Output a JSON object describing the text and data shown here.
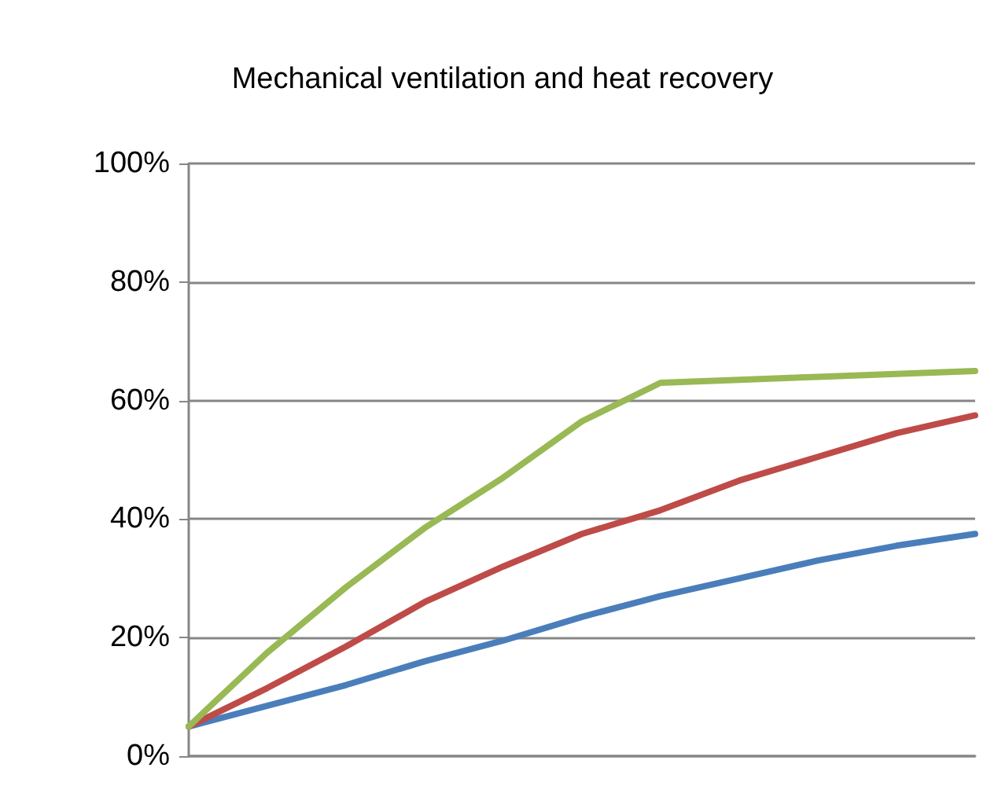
{
  "chart_data": {
    "type": "line",
    "title": "Mechanical ventilation and heat recovery",
    "categories": [
      null,
      null,
      null,
      null,
      null,
      null,
      null,
      null,
      null,
      null,
      null
    ],
    "series": [
      {
        "color": "#4a7ebb",
        "values": [
          5,
          8.5,
          12,
          16,
          19.5,
          23.5,
          27,
          30,
          33,
          35.5,
          37.5
        ]
      },
      {
        "color": "#be4b48",
        "values": [
          5,
          11.5,
          18.5,
          26,
          32,
          37.5,
          41.5,
          46.5,
          50.5,
          54.5,
          57.5
        ]
      },
      {
        "color": "#98b954",
        "values": [
          5,
          17.5,
          28.5,
          38.5,
          47,
          56.5,
          63,
          63.5,
          64,
          64.5,
          65
        ]
      }
    ],
    "ylim": [
      0,
      100
    ],
    "yticks": [
      {
        "value": 0,
        "label": "0%"
      },
      {
        "value": 20,
        "label": "20%"
      },
      {
        "value": 40,
        "label": "40%"
      },
      {
        "value": 60,
        "label": "60%"
      },
      {
        "value": 80,
        "label": "80%"
      },
      {
        "value": 100,
        "label": "100%"
      }
    ],
    "grid": "y",
    "marker": "none",
    "line_style": "solid",
    "tick_labels": "y"
  }
}
